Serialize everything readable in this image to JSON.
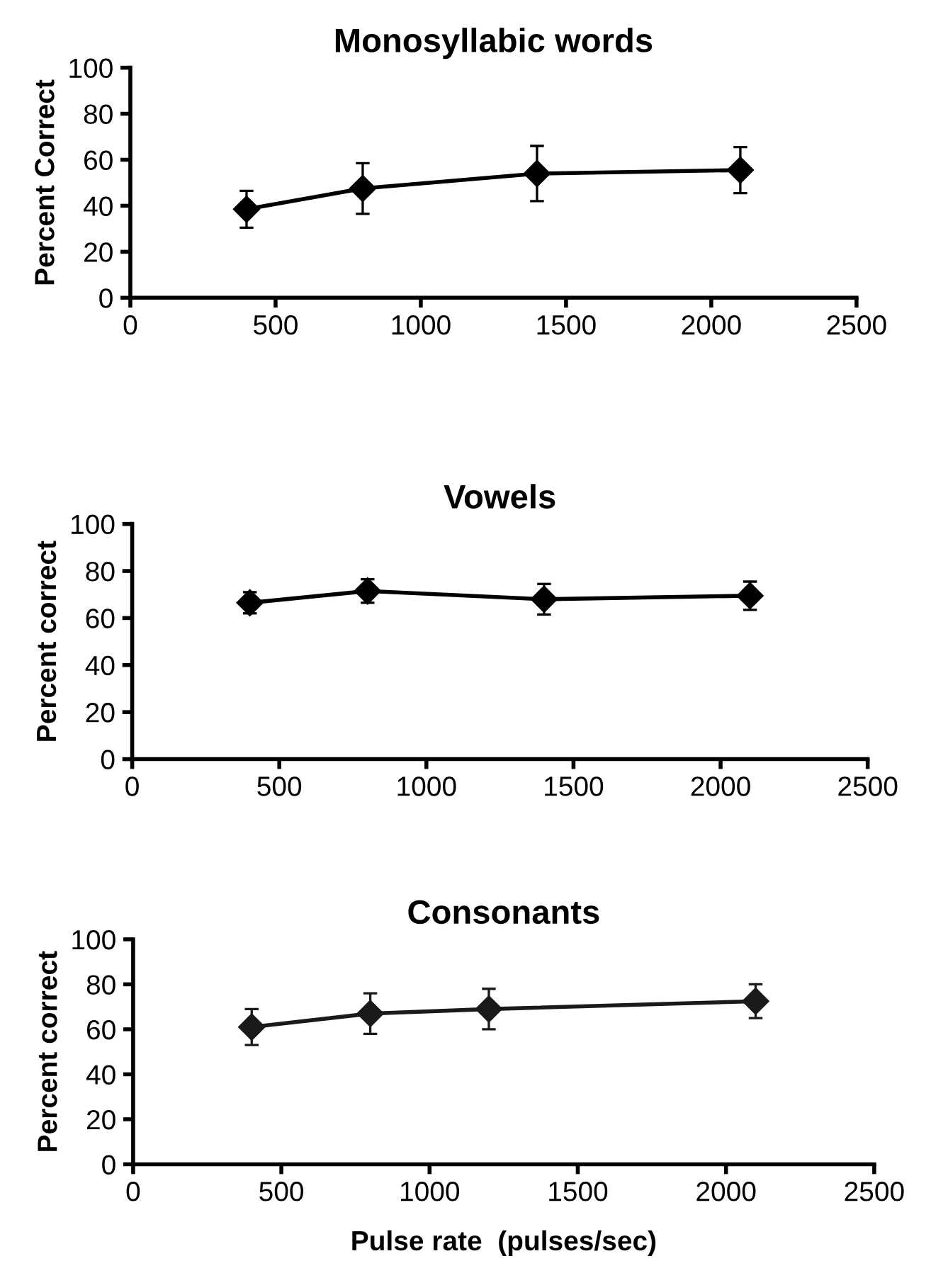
{
  "chart_data": [
    {
      "type": "line",
      "title": "Monosyllabic words",
      "ylabel": "Percent Correct",
      "x": [
        400,
        800,
        1400,
        2100
      ],
      "xlim": [
        0,
        2500
      ],
      "xticks": [
        0,
        500,
        1000,
        1500,
        2000,
        2500
      ],
      "ylim": [
        0,
        100
      ],
      "yticks": [
        0,
        20,
        40,
        60,
        80,
        100
      ],
      "series": [
        {
          "color": "#000000",
          "values": [
            38.5,
            47.5,
            54,
            55.5
          ],
          "errors": [
            8,
            11,
            12,
            10
          ]
        }
      ],
      "marker": "diamond",
      "line_style": "solid",
      "grid": false,
      "legend": false
    },
    {
      "type": "line",
      "title": "Vowels",
      "ylabel": "Percent correct",
      "x": [
        400,
        800,
        1400,
        2100
      ],
      "xlim": [
        0,
        2500
      ],
      "xticks": [
        0,
        500,
        1000,
        1500,
        2000,
        2500
      ],
      "ylim": [
        0,
        100
      ],
      "yticks": [
        0,
        20,
        40,
        60,
        80,
        100
      ],
      "series": [
        {
          "color": "#000000",
          "values": [
            66.5,
            71.5,
            68,
            69.5
          ],
          "errors": [
            4.5,
            5,
            6.5,
            6
          ]
        }
      ],
      "marker": "diamond",
      "line_style": "solid",
      "grid": false,
      "legend": false
    },
    {
      "type": "line",
      "title": "Consonants",
      "ylabel": "Percent correct",
      "xlabel": "Pulse rate  (pulses/sec)",
      "x": [
        400,
        800,
        1200,
        2100
      ],
      "xlim": [
        0,
        2500
      ],
      "xticks": [
        0,
        500,
        1000,
        1500,
        2000,
        2500
      ],
      "ylim": [
        0,
        100
      ],
      "yticks": [
        0,
        20,
        40,
        60,
        80,
        100
      ],
      "series": [
        {
          "color": "#1a1a1a",
          "values": [
            61,
            67,
            69,
            72.5
          ],
          "errors": [
            8,
            9,
            9,
            7.5
          ]
        }
      ],
      "marker": "diamond",
      "line_style": "solid",
      "grid": false,
      "legend": false
    }
  ]
}
